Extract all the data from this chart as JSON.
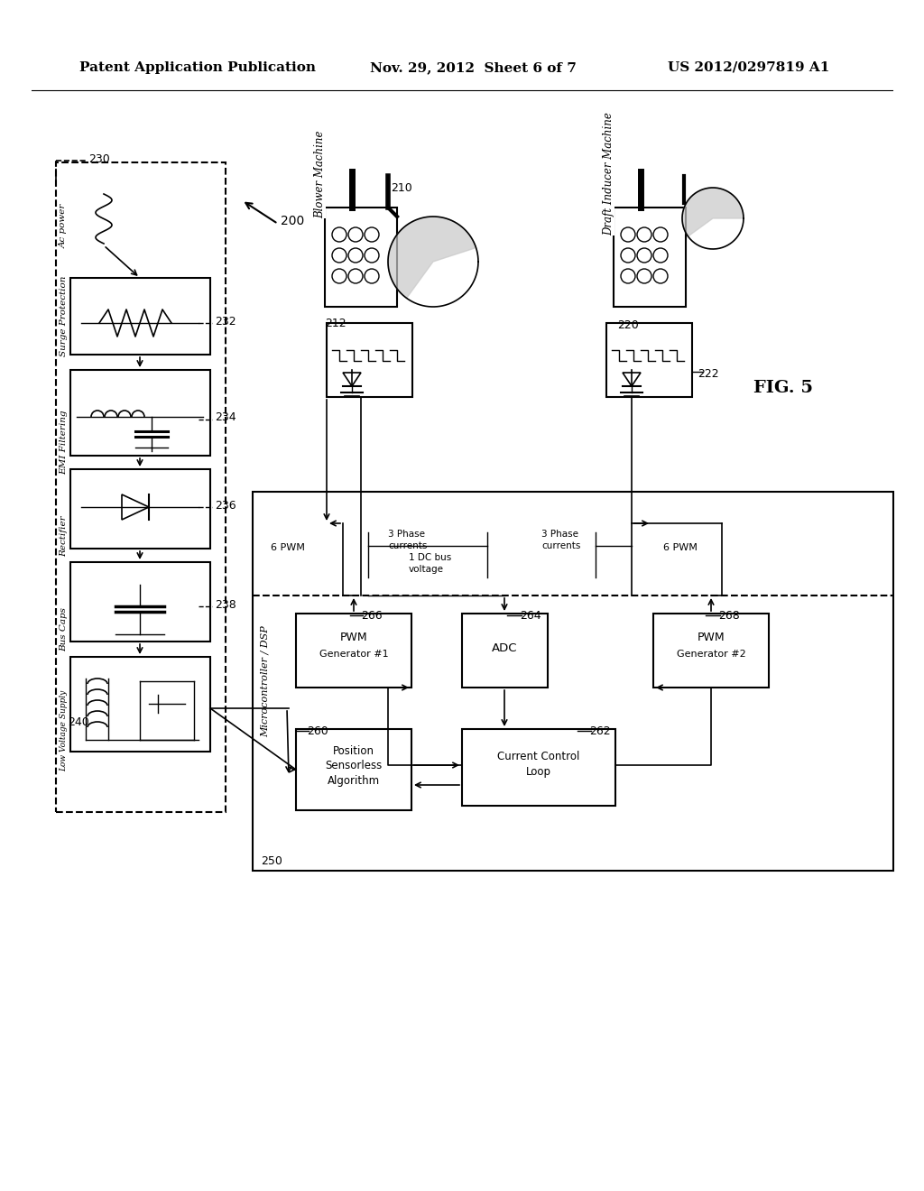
{
  "header_left": "Patent Application Publication",
  "header_mid": "Nov. 29, 2012  Sheet 6 of 7",
  "header_right": "US 2012/0297819 A1",
  "fig_label": "FIG. 5",
  "bg_color": "#ffffff"
}
